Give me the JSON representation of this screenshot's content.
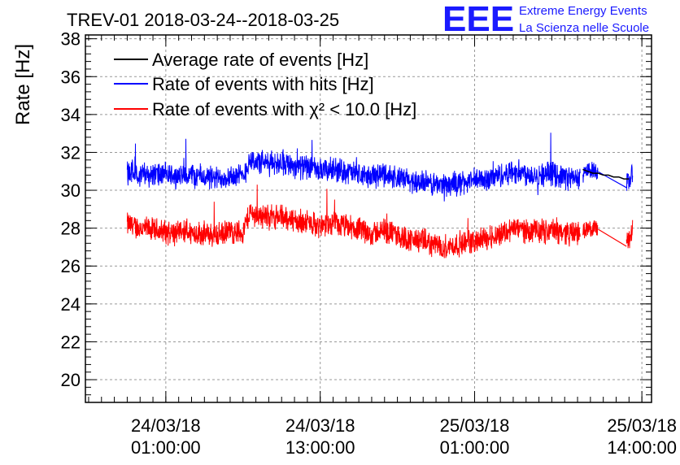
{
  "header": {
    "title": "TREV-01 2018-03-24--2018-03-25",
    "logo_text": "EEE",
    "logo_line1": "Extreme Energy Events",
    "logo_line2": "La Scienza nelle Scuole",
    "logo_color": "#1a1aff"
  },
  "chart_data": {
    "type": "line",
    "title": "TREV-01 2018-03-24--2018-03-25",
    "xlabel": "",
    "ylabel": "Rate [Hz]",
    "ylim": [
      18.8,
      38.2
    ],
    "yticks": [
      20,
      22,
      24,
      26,
      28,
      30,
      32,
      34,
      36,
      38
    ],
    "yticklabels": [
      "20",
      "22",
      "24",
      "26",
      "28",
      "30",
      "32",
      "34",
      "36",
      "38"
    ],
    "xlim_hours": [
      -5.25,
      38.75
    ],
    "xaxis_origin": "2018-03-24 00:00:00",
    "xticks": [
      {
        "hours": 1,
        "line1": "24/03/18",
        "line2": "01:00:00"
      },
      {
        "hours": 13,
        "line1": "24/03/18",
        "line2": "13:00:00"
      },
      {
        "hours": 25,
        "line1": "25/03/18",
        "line2": "01:00:00"
      },
      {
        "hours": 38,
        "line1": "25/03/18",
        "line2": "14:00:00"
      }
    ],
    "grid": true,
    "legend_position": "top-left",
    "series": [
      {
        "name": "Average rate of events [Hz]",
        "color": "#000000",
        "x_hours": [
          33.4,
          33.8,
          34.2,
          34.6,
          35.0,
          35.4,
          35.8,
          36.2,
          36.6,
          37.0
        ],
        "values": [
          31.1,
          31.0,
          30.9,
          30.9,
          30.8,
          30.8,
          30.7,
          30.7,
          30.6,
          30.6
        ]
      },
      {
        "name": "Rate of events with hits [Hz]",
        "color": "#0000ff",
        "x_hours": [
          -2.0,
          -1.0,
          0.0,
          1.0,
          2.0,
          3.0,
          4.0,
          5.0,
          6.0,
          7.0,
          7.5,
          8.0,
          9.0,
          10.0,
          11.0,
          12.0,
          13.0,
          14.0,
          15.0,
          16.0,
          17.0,
          18.0,
          19.0,
          20.0,
          21.0,
          22.0,
          23.0,
          24.0,
          25.0,
          26.0,
          27.0,
          28.0,
          29.0,
          30.0,
          31.0,
          32.0,
          33.0,
          34.0,
          35.0,
          36.0,
          36.5,
          37.0,
          37.3
        ],
        "values": [
          31.0,
          30.9,
          30.8,
          30.8,
          30.7,
          30.8,
          30.7,
          30.6,
          30.8,
          30.7,
          31.6,
          31.5,
          31.4,
          31.5,
          31.3,
          31.2,
          31.0,
          31.1,
          31.0,
          30.8,
          30.7,
          30.9,
          30.6,
          30.5,
          30.4,
          30.3,
          30.3,
          30.4,
          30.5,
          30.6,
          30.8,
          31.0,
          30.9,
          30.8,
          30.9,
          30.7,
          30.6,
          31.1,
          30.9,
          30.6,
          30.5,
          30.4,
          31.0
        ],
        "noise": 0.55
      },
      {
        "name": "Rate of events with χ² < 10.0 [Hz]",
        "color": "#ff0000",
        "x_hours": [
          -2.0,
          -1.0,
          0.0,
          1.0,
          2.0,
          3.0,
          4.0,
          5.0,
          6.0,
          7.0,
          7.5,
          8.0,
          9.0,
          10.0,
          11.0,
          12.0,
          13.0,
          14.0,
          15.0,
          16.0,
          17.0,
          18.0,
          19.0,
          20.0,
          21.0,
          22.0,
          23.0,
          24.0,
          25.0,
          26.0,
          27.0,
          28.0,
          29.0,
          30.0,
          31.0,
          32.0,
          33.0,
          34.0,
          35.0,
          36.0,
          36.5,
          37.0,
          37.3
        ],
        "values": [
          28.2,
          28.0,
          27.9,
          27.8,
          27.7,
          27.8,
          27.7,
          27.6,
          27.8,
          27.8,
          28.8,
          28.7,
          28.6,
          28.6,
          28.4,
          28.3,
          28.1,
          28.2,
          28.1,
          27.9,
          27.7,
          27.9,
          27.6,
          27.4,
          27.3,
          27.1,
          27.0,
          27.2,
          27.3,
          27.5,
          27.7,
          28.0,
          27.9,
          27.8,
          27.9,
          27.8,
          27.7,
          28.0,
          27.9,
          27.6,
          27.4,
          27.3,
          28.0
        ],
        "noise": 0.55
      }
    ]
  }
}
